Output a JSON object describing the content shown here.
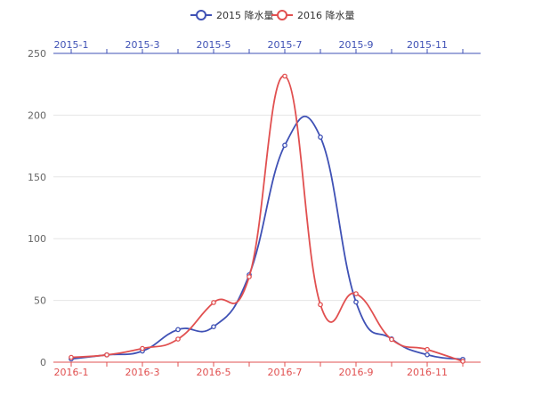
{
  "chart_data": {
    "type": "line",
    "smooth": true,
    "grid": "horizontal",
    "legend_position": "top-center",
    "ylim": [
      0,
      250
    ],
    "yticks": [
      0,
      50,
      100,
      150,
      200,
      250
    ],
    "series": [
      {
        "name": "2015 降水量",
        "color": "#3f51b5",
        "axis": "top",
        "x": [
          "2015-1",
          "2015-2",
          "2015-3",
          "2015-4",
          "2015-5",
          "2015-6",
          "2015-7",
          "2015-8",
          "2015-9",
          "2015-10",
          "2015-11",
          "2015-12"
        ],
        "x_tick_labels": [
          "2015-1",
          "2015-3",
          "2015-5",
          "2015-7",
          "2015-9",
          "2015-11"
        ],
        "values": [
          2.6,
          5.9,
          9.0,
          26.4,
          28.7,
          70.7,
          175.6,
          182.2,
          48.7,
          18.8,
          6.0,
          2.3
        ]
      },
      {
        "name": "2016 降水量",
        "color": "#e15050",
        "axis": "bottom",
        "x": [
          "2016-1",
          "2016-2",
          "2016-3",
          "2016-4",
          "2016-5",
          "2016-6",
          "2016-7",
          "2016-8",
          "2016-9",
          "2016-10",
          "2016-11",
          "2016-12"
        ],
        "x_tick_labels": [
          "2016-1",
          "2016-3",
          "2016-5",
          "2016-7",
          "2016-9",
          "2016-11"
        ],
        "values": [
          3.9,
          5.9,
          11.1,
          18.7,
          48.3,
          69.2,
          231.6,
          46.6,
          55.4,
          18.4,
          10.3,
          0.7
        ]
      }
    ]
  }
}
